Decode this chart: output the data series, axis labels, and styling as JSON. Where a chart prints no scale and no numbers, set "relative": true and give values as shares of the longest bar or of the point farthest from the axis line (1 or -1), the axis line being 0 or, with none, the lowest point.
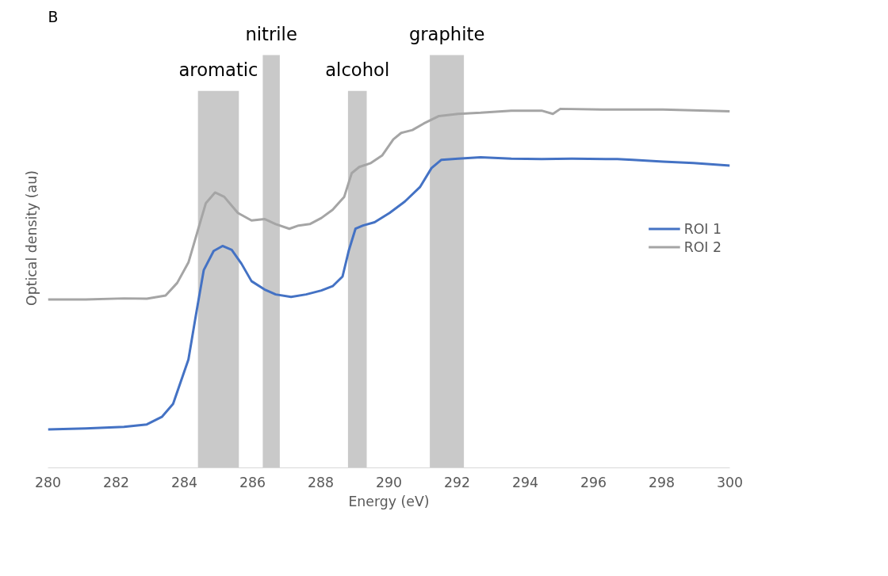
{
  "chart_data": {
    "type": "line",
    "relative": true,
    "xlabel": "Energy (eV)",
    "ylabel": "Optical density (au)",
    "xlim": [
      280,
      300
    ],
    "xticks": [
      280,
      282,
      284,
      286,
      288,
      290,
      292,
      294,
      296,
      298,
      300
    ],
    "grid": false,
    "legend": "right",
    "tick_labels": "x",
    "line_style": "solid",
    "marker": "none",
    "annotations": [
      "B"
    ],
    "bands": [
      {
        "axis": "x",
        "from": 284.4,
        "to": 285.6,
        "label": "aromatic",
        "color": "#bfbfbf"
      },
      {
        "axis": "x",
        "from": 286.3,
        "to": 286.8,
        "label": "nitrile",
        "color": "#bfbfbf"
      },
      {
        "axis": "x",
        "from": 288.8,
        "to": 289.35,
        "label": "alcohol",
        "color": "#bfbfbf"
      },
      {
        "axis": "x",
        "from": 291.2,
        "to": 292.2,
        "label": "graphite",
        "color": "#bfbfbf"
      }
    ],
    "series": [
      {
        "name": "ROI 1",
        "color": "#4472c4",
        "x": [
          280,
          281.11,
          282.23,
          282.9,
          283.34,
          283.67,
          284.12,
          284.34,
          284.57,
          284.86,
          285.12,
          285.39,
          285.68,
          285.97,
          286.35,
          286.68,
          287.13,
          287.57,
          288.02,
          288.35,
          288.64,
          288.82,
          289.02,
          289.24,
          289.58,
          290.02,
          290.47,
          290.91,
          291.25,
          291.54,
          292.03,
          292.69,
          293.59,
          294.48,
          295.37,
          296.7,
          297.15,
          298.04,
          298.93,
          300
        ],
        "values": [
          0.107,
          0.11,
          0.114,
          0.121,
          0.142,
          0.178,
          0.302,
          0.426,
          0.551,
          0.604,
          0.618,
          0.607,
          0.568,
          0.52,
          0.497,
          0.483,
          0.476,
          0.483,
          0.494,
          0.506,
          0.533,
          0.604,
          0.666,
          0.675,
          0.684,
          0.71,
          0.742,
          0.782,
          0.835,
          0.858,
          0.861,
          0.865,
          0.861,
          0.86,
          0.861,
          0.86,
          0.858,
          0.853,
          0.849,
          0.842
        ]
      },
      {
        "name": "ROI 2",
        "color": "#a5a5a5",
        "x": [
          280,
          281.11,
          282.23,
          282.9,
          283.45,
          283.79,
          284.12,
          284.41,
          284.63,
          284.9,
          285.17,
          285.57,
          285.97,
          286.35,
          286.68,
          287.08,
          287.35,
          287.68,
          288.02,
          288.35,
          288.69,
          288.91,
          289.13,
          289.47,
          289.8,
          290.13,
          290.36,
          290.69,
          291.02,
          291.47,
          292.03,
          292.69,
          293.59,
          294.48,
          294.81,
          295.03,
          296.26,
          298.04,
          300
        ],
        "values": [
          0.469,
          0.469,
          0.472,
          0.471,
          0.48,
          0.515,
          0.572,
          0.666,
          0.737,
          0.767,
          0.755,
          0.71,
          0.689,
          0.693,
          0.679,
          0.666,
          0.675,
          0.679,
          0.696,
          0.719,
          0.755,
          0.821,
          0.838,
          0.849,
          0.87,
          0.915,
          0.933,
          0.941,
          0.959,
          0.98,
          0.986,
          0.989,
          0.995,
          0.995,
          0.986,
          1.0,
          0.998,
          0.998,
          0.993
        ]
      }
    ]
  }
}
